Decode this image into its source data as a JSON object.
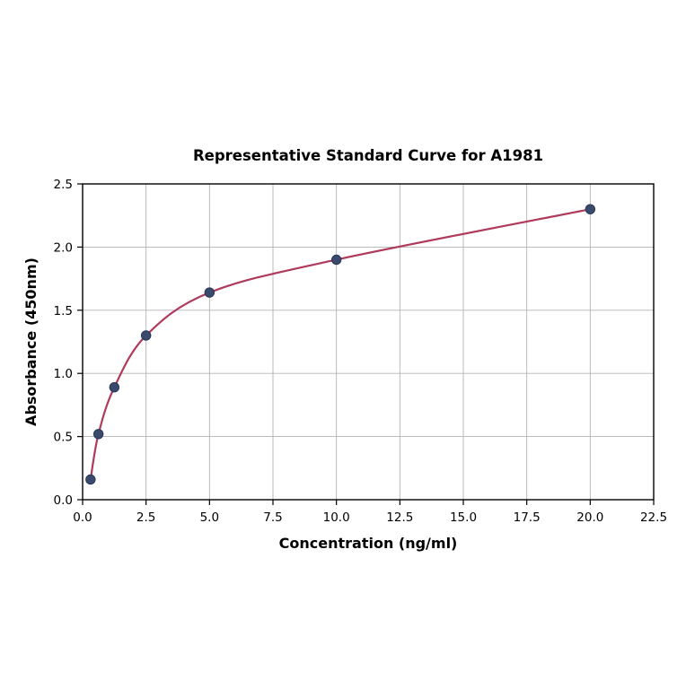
{
  "chart_data": {
    "type": "scatter",
    "title": "Representative Standard Curve for A1981",
    "xlabel": "Concentration (ng/ml)",
    "ylabel": "Absorbance (450nm)",
    "xlim": [
      0,
      22.5
    ],
    "ylim": [
      0,
      2.5
    ],
    "x_ticks": [
      0.0,
      2.5,
      5.0,
      7.5,
      10.0,
      12.5,
      15.0,
      17.5,
      20.0,
      22.5
    ],
    "y_ticks": [
      0.0,
      0.5,
      1.0,
      1.5,
      2.0,
      2.5
    ],
    "grid": true,
    "legend": "none",
    "points": {
      "x": [
        0.3125,
        0.625,
        1.25,
        2.5,
        5.0,
        10.0,
        20.0
      ],
      "y": [
        0.16,
        0.52,
        0.89,
        1.3,
        1.64,
        1.9,
        2.3
      ]
    },
    "colors": {
      "curve": "#b03a5b",
      "marker_fill": "#3a4a6b",
      "marker_edge": "#27365a",
      "grid": "#b3b3b3",
      "frame": "#000000"
    }
  }
}
